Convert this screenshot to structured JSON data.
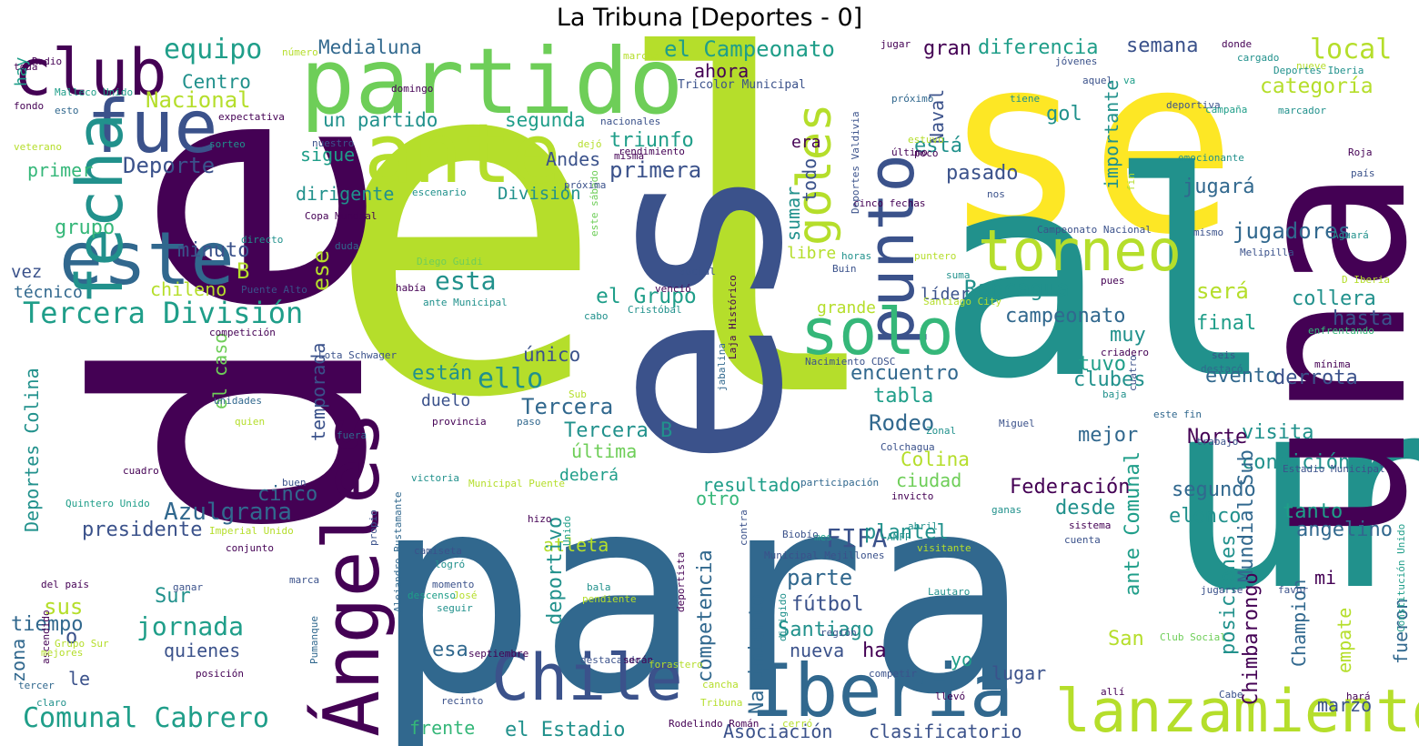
{
  "title": "La Tribuna [Deportes - 0]",
  "palette": {
    "dark_purple": "#440154",
    "indigo": "#3b528b",
    "blue": "#31688e",
    "teal": "#21918c",
    "sea_green": "#1f9e89",
    "green": "#35b779",
    "light_green": "#6ece58",
    "lime": "#b5de2b",
    "yellow": "#fde725"
  },
  "words": [
    {
      "text": "el",
      "c": "lime"
    },
    {
      "text": "de",
      "c": "dark_purple"
    },
    {
      "text": "para",
      "c": "blue"
    },
    {
      "text": "un",
      "c": "teal"
    },
    {
      "text": "se",
      "c": "yellow"
    },
    {
      "text": "al",
      "c": "teal"
    },
    {
      "text": "es",
      "c": "indigo"
    },
    {
      "text": "una",
      "c": "dark_purple"
    },
    {
      "text": "partido",
      "c": "light_green"
    },
    {
      "text": "club",
      "c": "dark_purple"
    },
    {
      "text": "fue",
      "c": "indigo"
    },
    {
      "text": "ante",
      "c": "lime"
    },
    {
      "text": "este",
      "c": "blue"
    },
    {
      "text": "fecha",
      "c": "teal"
    },
    {
      "text": "punto",
      "c": "indigo"
    },
    {
      "text": "torneo",
      "c": "lime"
    },
    {
      "text": "solo",
      "c": "green"
    },
    {
      "text": "goles",
      "c": "lime"
    },
    {
      "text": "Ángeles",
      "c": "dark_purple"
    },
    {
      "text": "Chile",
      "c": "indigo"
    },
    {
      "text": "Iberia",
      "c": "blue"
    },
    {
      "text": "lanzamiento",
      "c": "lime"
    },
    {
      "text": "Tercera División",
      "c": "sea_green"
    },
    {
      "text": "Comunal Cabrero",
      "c": "sea_green"
    },
    {
      "text": "equipo",
      "c": "sea_green"
    },
    {
      "text": "Medialuna",
      "c": "blue"
    },
    {
      "text": "el Campeonato",
      "c": "sea_green"
    },
    {
      "text": "gran",
      "c": "dark_purple"
    },
    {
      "text": "diferencia",
      "c": "sea_green"
    },
    {
      "text": "semana",
      "c": "indigo"
    },
    {
      "text": "local",
      "c": "lime"
    },
    {
      "text": "categoría",
      "c": "lime"
    },
    {
      "text": "Centro",
      "c": "teal"
    },
    {
      "text": "Nacional",
      "c": "lime"
    },
    {
      "text": "ahora",
      "c": "dark_purple"
    },
    {
      "text": "Tricolor Municipal",
      "c": "indigo"
    },
    {
      "text": "un partido",
      "c": "teal"
    },
    {
      "text": "segunda",
      "c": "sea_green"
    },
    {
      "text": "triunfo",
      "c": "sea_green"
    },
    {
      "text": "primera",
      "c": "indigo"
    },
    {
      "text": "Deporte",
      "c": "indigo"
    },
    {
      "text": "primer",
      "c": "green"
    },
    {
      "text": "sigue",
      "c": "sea_green"
    },
    {
      "text": "dirigente",
      "c": "teal"
    },
    {
      "text": "Andes",
      "c": "indigo"
    },
    {
      "text": "División",
      "c": "teal"
    },
    {
      "text": "era",
      "c": "dark_purple"
    },
    {
      "text": "está",
      "c": "teal"
    },
    {
      "text": "pasado",
      "c": "indigo"
    },
    {
      "text": "gol",
      "c": "teal"
    },
    {
      "text": "jugará",
      "c": "blue"
    },
    {
      "text": "jugadores",
      "c": "blue"
    },
    {
      "text": "grupo",
      "c": "green"
    },
    {
      "text": "minuto",
      "c": "indigo"
    },
    {
      "text": "B",
      "c": "lime"
    },
    {
      "text": "vez",
      "c": "indigo"
    },
    {
      "text": "técnico",
      "c": "blue"
    },
    {
      "text": "chileno",
      "c": "lime"
    },
    {
      "text": "esta",
      "c": "teal"
    },
    {
      "text": "el Grupo",
      "c": "sea_green"
    },
    {
      "text": "ello",
      "c": "teal"
    },
    {
      "text": "Rancagua",
      "c": "teal"
    },
    {
      "text": "será",
      "c": "lime"
    },
    {
      "text": "collera",
      "c": "teal"
    },
    {
      "text": "hasta",
      "c": "indigo"
    },
    {
      "text": "campeonato",
      "c": "blue"
    },
    {
      "text": "final",
      "c": "sea_green"
    },
    {
      "text": "muy",
      "c": "teal"
    },
    {
      "text": "encuentro",
      "c": "blue"
    },
    {
      "text": "tabla",
      "c": "sea_green"
    },
    {
      "text": "tuvo",
      "c": "sea_green"
    },
    {
      "text": "clubes",
      "c": "teal"
    },
    {
      "text": "evento",
      "c": "blue"
    },
    {
      "text": "derrota",
      "c": "indigo"
    },
    {
      "text": "Rodeo",
      "c": "blue"
    },
    {
      "text": "visita",
      "c": "teal"
    },
    {
      "text": "mejor",
      "c": "blue"
    },
    {
      "text": "condición",
      "c": "teal"
    },
    {
      "text": "Norte",
      "c": "dark_purple"
    },
    {
      "text": "Tercera",
      "c": "blue"
    },
    {
      "text": "Tercera B",
      "c": "teal"
    },
    {
      "text": "están",
      "c": "teal"
    },
    {
      "text": "duelo",
      "c": "indigo"
    },
    {
      "text": "última",
      "c": "light_green"
    },
    {
      "text": "deberá",
      "c": "sea_green"
    },
    {
      "text": "único",
      "c": "indigo"
    },
    {
      "text": "Azulgrana",
      "c": "blue"
    },
    {
      "text": "cinco",
      "c": "blue"
    },
    {
      "text": "presidente",
      "c": "indigo"
    },
    {
      "text": "resultado",
      "c": "sea_green"
    },
    {
      "text": "otro",
      "c": "green"
    },
    {
      "text": "Colina",
      "c": "lime"
    },
    {
      "text": "ciudad",
      "c": "light_green"
    },
    {
      "text": "Federación",
      "c": "dark_purple"
    },
    {
      "text": "desde",
      "c": "teal"
    },
    {
      "text": "segundo",
      "c": "blue"
    },
    {
      "text": "elenco",
      "c": "teal"
    },
    {
      "text": "tanto",
      "c": "sea_green"
    },
    {
      "text": "angelino",
      "c": "blue"
    },
    {
      "text": "FIFA",
      "c": "indigo"
    },
    {
      "text": "plantel",
      "c": "teal"
    },
    {
      "text": "parte",
      "c": "blue"
    },
    {
      "text": "fútbol",
      "c": "indigo"
    },
    {
      "text": "Santiago",
      "c": "teal"
    },
    {
      "text": "nueva",
      "c": "indigo"
    },
    {
      "text": "ha",
      "c": "dark_purple"
    },
    {
      "text": "yo",
      "c": "sea_green"
    },
    {
      "text": "lugar",
      "c": "indigo"
    },
    {
      "text": "San",
      "c": "lime"
    },
    {
      "text": "mi",
      "c": "dark_purple"
    },
    {
      "text": "marzo",
      "c": "indigo"
    },
    {
      "text": "atleta",
      "c": "lime"
    },
    {
      "text": "esa",
      "c": "blue"
    },
    {
      "text": "Sur",
      "c": "teal"
    },
    {
      "text": "sus",
      "c": "lime"
    },
    {
      "text": "jornada",
      "c": "sea_green"
    },
    {
      "text": "quienes",
      "c": "indigo"
    },
    {
      "text": "tiempo",
      "c": "blue"
    },
    {
      "text": "o",
      "c": "indigo"
    },
    {
      "text": "le",
      "c": "indigo"
    },
    {
      "text": "frente",
      "c": "green"
    },
    {
      "text": "el Estadio",
      "c": "teal"
    },
    {
      "text": "Asociación",
      "c": "indigo"
    },
    {
      "text": "clasificatorio",
      "c": "indigo"
    },
    {
      "text": "hay",
      "c": "sea_green"
    },
    {
      "text": "libre",
      "c": "lime"
    },
    {
      "text": "grande",
      "c": "lime"
    },
    {
      "text": "líder",
      "c": "indigo"
    },
    {
      "text": "zona",
      "c": "blue"
    },
    {
      "text": "ese",
      "c": "lime"
    },
    {
      "text": "Deportes Colina",
      "c": "teal"
    },
    {
      "text": "temporada",
      "c": "indigo"
    },
    {
      "text": "el caso",
      "c": "light_green"
    },
    {
      "text": "Naval",
      "c": "indigo"
    },
    {
      "text": "importante",
      "c": "teal"
    },
    {
      "text": "todo",
      "c": "indigo"
    },
    {
      "text": "sumar",
      "c": "teal"
    },
    {
      "text": "competencia",
      "c": "blue"
    },
    {
      "text": "Nacimiento",
      "c": "blue"
    },
    {
      "text": "deportivo",
      "c": "teal"
    },
    {
      "text": "Chimbarongo",
      "c": "dark_purple"
    },
    {
      "text": "posiciones",
      "c": "teal"
    },
    {
      "text": "Mundial Sub",
      "c": "blue"
    },
    {
      "text": "ante Comunal",
      "c": "sea_green"
    },
    {
      "text": "Champion",
      "c": "blue"
    },
    {
      "text": "empate",
      "c": "lime"
    },
    {
      "text": "fueron",
      "c": "blue"
    },
    {
      "text": "Malleco Unido",
      "c": "sea_green"
    },
    {
      "text": "Radio",
      "c": "dark_purple"
    },
    {
      "text": "toda",
      "c": "dark_purple"
    },
    {
      "text": "fondo",
      "c": "dark_purple"
    },
    {
      "text": "esto",
      "c": "blue"
    },
    {
      "text": "expectativa",
      "c": "dark_purple"
    },
    {
      "text": "veterano",
      "c": "lime"
    },
    {
      "text": "sorteo",
      "c": "teal"
    },
    {
      "text": "número",
      "c": "lime"
    },
    {
      "text": "domingo",
      "c": "dark_purple"
    },
    {
      "text": "marcha",
      "c": "lime"
    },
    {
      "text": "jugar",
      "c": "dark_purple"
    },
    {
      "text": "jóvenes",
      "c": "indigo"
    },
    {
      "text": "donde",
      "c": "dark_purple"
    },
    {
      "text": "cargado",
      "c": "teal"
    },
    {
      "text": "nueve",
      "c": "lime"
    },
    {
      "text": "Deportes Iberia",
      "c": "teal"
    },
    {
      "text": "aquel",
      "c": "indigo"
    },
    {
      "text": "va",
      "c": "sea_green"
    },
    {
      "text": "próximo",
      "c": "blue"
    },
    {
      "text": "tiene",
      "c": "teal"
    },
    {
      "text": "deportiva",
      "c": "indigo"
    },
    {
      "text": "campaña",
      "c": "sea_green"
    },
    {
      "text": "marcador",
      "c": "teal"
    },
    {
      "text": "nacionales",
      "c": "indigo"
    },
    {
      "text": "dejó",
      "c": "lime"
    },
    {
      "text": "rendimiento",
      "c": "dark_purple"
    },
    {
      "text": "nuestro",
      "c": "indigo"
    },
    {
      "text": "misma",
      "c": "dark_purple"
    },
    {
      "text": "escenario",
      "c": "teal"
    },
    {
      "text": "estuvo",
      "c": "lime"
    },
    {
      "text": "último",
      "c": "dark_purple"
    },
    {
      "text": "poco",
      "c": "dark_purple"
    },
    {
      "text": "nos",
      "c": "indigo"
    },
    {
      "text": "cinco fechas",
      "c": "dark_purple"
    },
    {
      "text": "emocionante",
      "c": "teal"
    },
    {
      "text": "Roja",
      "c": "dark_purple"
    },
    {
      "text": "país",
      "c": "indigo"
    },
    {
      "text": "Aguará",
      "c": "teal"
    },
    {
      "text": "fin",
      "c": "lime"
    },
    {
      "text": "Deportes Valdivia",
      "c": "indigo"
    },
    {
      "text": "Copa Mundial",
      "c": "dark_purple"
    },
    {
      "text": "directo",
      "c": "teal"
    },
    {
      "text": "duda",
      "c": "blue"
    },
    {
      "text": "Diego Guidi",
      "c": "light_green"
    },
    {
      "text": "había",
      "c": "dark_purple"
    },
    {
      "text": "ante Municipal",
      "c": "teal"
    },
    {
      "text": "Puente Alto",
      "c": "indigo"
    },
    {
      "text": "Social",
      "c": "indigo"
    },
    {
      "text": "Buin",
      "c": "indigo"
    },
    {
      "text": "horas",
      "c": "teal"
    },
    {
      "text": "pues",
      "c": "dark_purple"
    },
    {
      "text": "puntero",
      "c": "lime"
    },
    {
      "text": "suma",
      "c": "teal"
    },
    {
      "text": "mismo",
      "c": "indigo"
    },
    {
      "text": "Melipilla",
      "c": "indigo"
    },
    {
      "text": "Campeonato Nacional",
      "c": "indigo"
    },
    {
      "text": "Santiago City",
      "c": "lime"
    },
    {
      "text": "Cristóbal",
      "c": "teal"
    },
    {
      "text": "cabo",
      "c": "teal"
    },
    {
      "text": "venció",
      "c": "dark_purple"
    },
    {
      "text": "este sábado",
      "c": "light_green"
    },
    {
      "text": "Laja Histórico",
      "c": "dark_purple"
    },
    {
      "text": "Lota Schwager",
      "c": "indigo"
    },
    {
      "text": "competición",
      "c": "dark_purple"
    },
    {
      "text": "unidades",
      "c": "blue"
    },
    {
      "text": "quien",
      "c": "lime"
    },
    {
      "text": "D Iberia",
      "c": "lime"
    },
    {
      "text": "enfrentando",
      "c": "green"
    },
    {
      "text": "criadero",
      "c": "dark_purple"
    },
    {
      "text": "seis",
      "c": "indigo"
    },
    {
      "text": "destacó",
      "c": "blue"
    },
    {
      "text": "mínima",
      "c": "dark_purple"
    },
    {
      "text": "Nacimiento CDSC",
      "c": "indigo"
    },
    {
      "text": "baja",
      "c": "teal"
    },
    {
      "text": "cuatro",
      "c": "indigo"
    },
    {
      "text": "este fin",
      "c": "blue"
    },
    {
      "text": "jabalina",
      "c": "blue"
    },
    {
      "text": "provincia",
      "c": "dark_purple"
    },
    {
      "text": "paso",
      "c": "blue"
    },
    {
      "text": "Sub",
      "c": "lime"
    },
    {
      "text": "Miguel",
      "c": "indigo"
    },
    {
      "text": "Zonal",
      "c": "teal"
    },
    {
      "text": "trabajo",
      "c": "indigo"
    },
    {
      "text": "Colchagua",
      "c": "indigo"
    },
    {
      "text": "fuera",
      "c": "blue"
    },
    {
      "text": "invicto",
      "c": "dark_purple"
    },
    {
      "text": "participación",
      "c": "blue"
    },
    {
      "text": "Estadio Municipal",
      "c": "indigo"
    },
    {
      "text": "buen",
      "c": "indigo"
    },
    {
      "text": "victoria",
      "c": "teal"
    },
    {
      "text": "Municipal Puente",
      "c": "lime"
    },
    {
      "text": "propio",
      "c": "indigo"
    },
    {
      "text": "Unido",
      "c": "sea_green"
    },
    {
      "text": "contra",
      "c": "indigo"
    },
    {
      "text": "ganas",
      "c": "teal"
    },
    {
      "text": "sistema",
      "c": "dark_purple"
    },
    {
      "text": "cuenta",
      "c": "indigo"
    },
    {
      "text": "cuadro",
      "c": "dark_purple"
    },
    {
      "text": "Quintero Unido",
      "c": "sea_green"
    },
    {
      "text": "Imperial Unido",
      "c": "lime"
    },
    {
      "text": "conjunto",
      "c": "dark_purple"
    },
    {
      "text": "Alejandro Bustamante",
      "c": "blue"
    },
    {
      "text": "hizo",
      "c": "dark_purple"
    },
    {
      "text": "mes",
      "c": "sea_green"
    },
    {
      "text": "ANFP",
      "c": "teal"
    },
    {
      "text": "abril",
      "c": "teal"
    },
    {
      "text": "Biobío",
      "c": "indigo"
    },
    {
      "text": "Municipal Mejillones",
      "c": "indigo"
    },
    {
      "text": "visitante",
      "c": "lime"
    },
    {
      "text": "camiseta",
      "c": "indigo"
    },
    {
      "text": "logró",
      "c": "teal"
    },
    {
      "text": "momento",
      "c": "indigo"
    },
    {
      "text": "José",
      "c": "lime"
    },
    {
      "text": "descenso",
      "c": "sea_green"
    },
    {
      "text": "seguir",
      "c": "teal"
    },
    {
      "text": "bala",
      "c": "teal"
    },
    {
      "text": "pendiente",
      "c": "lime"
    },
    {
      "text": "dirigido",
      "c": "teal"
    },
    {
      "text": "deportista",
      "c": "dark_purple"
    },
    {
      "text": "Lautaro",
      "c": "teal"
    },
    {
      "text": "jugarse",
      "c": "indigo"
    },
    {
      "text": "favor",
      "c": "indigo"
    },
    {
      "text": "Constitución Unido",
      "c": "sea_green"
    },
    {
      "text": "del país",
      "c": "dark_purple"
    },
    {
      "text": "marca",
      "c": "indigo"
    },
    {
      "text": "ganar",
      "c": "indigo"
    },
    {
      "text": "ascendido",
      "c": "dark_purple"
    },
    {
      "text": "Pumanque",
      "c": "blue"
    },
    {
      "text": "Grupo Sur",
      "c": "lime"
    },
    {
      "text": "mejores",
      "c": "lime"
    },
    {
      "text": "posición",
      "c": "dark_purple"
    },
    {
      "text": "tercer",
      "c": "blue"
    },
    {
      "text": "claro",
      "c": "teal"
    },
    {
      "text": "septiembre",
      "c": "dark_purple"
    },
    {
      "text": "destacando",
      "c": "indigo"
    },
    {
      "text": "serán",
      "c": "dark_purple"
    },
    {
      "text": "forastero",
      "c": "lime"
    },
    {
      "text": "región",
      "c": "indigo"
    },
    {
      "text": "competir",
      "c": "indigo"
    },
    {
      "text": "Club Social",
      "c": "light_green"
    },
    {
      "text": "Cabe",
      "c": "indigo"
    },
    {
      "text": "hará",
      "c": "dark_purple"
    },
    {
      "text": "recinto",
      "c": "indigo"
    },
    {
      "text": "cancha",
      "c": "lime"
    },
    {
      "text": "Tribuna",
      "c": "lime"
    },
    {
      "text": "cerró",
      "c": "lime"
    },
    {
      "text": "llevó",
      "c": "dark_purple"
    },
    {
      "text": "allí",
      "c": "dark_purple"
    },
    {
      "text": "Rodelindo Román",
      "c": "dark_purple"
    },
    {
      "text": "próxima",
      "c": "indigo"
    },
    {
      "text": "él",
      "c": "indigo"
    }
  ]
}
